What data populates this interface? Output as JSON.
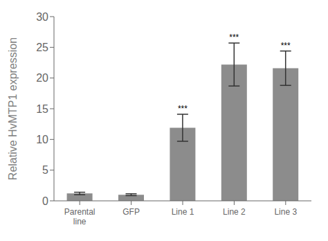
{
  "chart_data": {
    "type": "bar",
    "categories": [
      "Parental\nline",
      "GFP",
      "Line 1",
      "Line 2",
      "Line 3"
    ],
    "values": [
      1.2,
      1.0,
      11.9,
      22.2,
      21.6
    ],
    "errors": [
      0.2,
      0.15,
      2.2,
      3.5,
      2.8
    ],
    "color": "#8c8c8c",
    "ylabel": "Relative HvMTP1 expression",
    "ylim": [
      0,
      30
    ],
    "yticks": [
      0,
      5,
      10,
      15,
      20,
      25,
      30
    ],
    "grid": false,
    "annotations": [
      {
        "category": "Line 1",
        "text": "***"
      },
      {
        "category": "Line 2",
        "text": "***"
      },
      {
        "category": "Line 3",
        "text": "***"
      }
    ]
  }
}
